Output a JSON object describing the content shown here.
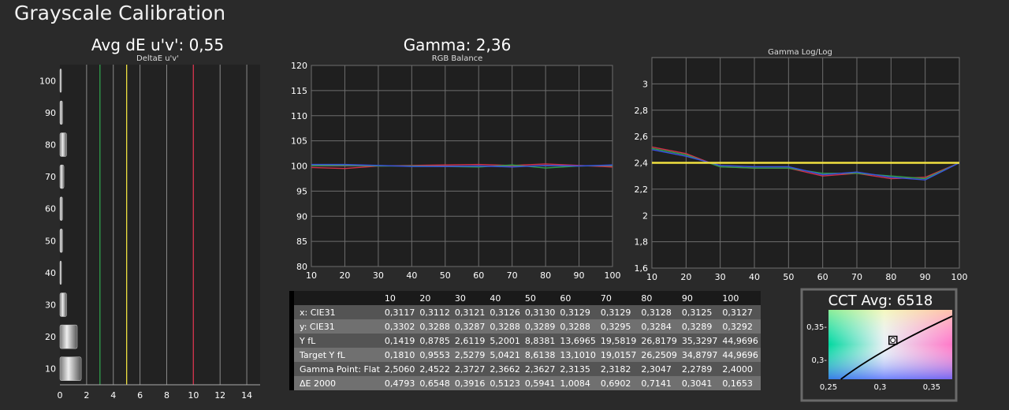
{
  "page_title": "Grayscale Calibration",
  "colors": {
    "background": "#2a2a2a",
    "plot": "#1f1f1f",
    "grid": "#8a8a8a",
    "red": "#d0324a",
    "green": "#2fa04c",
    "blue": "#3a50e0",
    "target": "#f0e040"
  },
  "table": {
    "headers": [
      "10",
      "20",
      "30",
      "40",
      "50",
      "60",
      "70",
      "80",
      "90",
      "100"
    ],
    "rows": [
      {
        "label": "x: CIE31",
        "values": [
          "0,3117",
          "0,3112",
          "0,3121",
          "0,3126",
          "0,3130",
          "0,3129",
          "0,3129",
          "0,3128",
          "0,3125",
          "0,3127"
        ]
      },
      {
        "label": "y: CIE31",
        "values": [
          "0,3302",
          "0,3288",
          "0,3287",
          "0,3288",
          "0,3289",
          "0,3288",
          "0,3295",
          "0,3284",
          "0,3289",
          "0,3292"
        ]
      },
      {
        "label": "Y fL",
        "values": [
          "0,1419",
          "0,8785",
          "2,6119",
          "5,2001",
          "8,8381",
          "13,6965",
          "19,5819",
          "26,8179",
          "35,3297",
          "44,9696"
        ]
      },
      {
        "label": "Target Y fL",
        "values": [
          "0,1810",
          "0,9553",
          "2,5279",
          "5,0421",
          "8,6138",
          "13,1010",
          "19,0157",
          "26,2509",
          "34,8797",
          "44,9696"
        ]
      },
      {
        "label": "Gamma Point: Flat",
        "values": [
          "2,5060",
          "2,4522",
          "2,3727",
          "2,3662",
          "2,3627",
          "2,3135",
          "2,3182",
          "2,3047",
          "2,2789",
          "2,4000"
        ]
      },
      {
        "label": "ΔE 2000",
        "values": [
          "0,4793",
          "0,6548",
          "0,3916",
          "0,5123",
          "0,5941",
          "1,0084",
          "0,6902",
          "0,7141",
          "0,3041",
          "0,1653"
        ]
      }
    ]
  },
  "chart_data": [
    {
      "type": "bar",
      "title": "Avg dE u'v': 0,55",
      "subtitle": "DeltaE u'v'",
      "orientation": "horizontal",
      "categories": [
        10,
        20,
        30,
        40,
        50,
        60,
        70,
        80,
        90,
        100
      ],
      "values": [
        1.6,
        1.3,
        0.5,
        0.1,
        0.2,
        0.2,
        0.3,
        0.5,
        0.2,
        0.1
      ],
      "x_ticks": [
        "0",
        "2",
        "4",
        "6",
        "8",
        "10",
        "12",
        "14"
      ],
      "xlim": [
        0,
        15
      ],
      "y_ticks": [
        "10",
        "20",
        "30",
        "40",
        "50",
        "60",
        "70",
        "80",
        "90",
        "100"
      ],
      "ylim": [
        5,
        105
      ],
      "reference_lines": [
        {
          "x": 3,
          "color": "#2fa04c"
        },
        {
          "x": 5,
          "color": "#f0e040"
        },
        {
          "x": 10,
          "color": "#d0324a"
        }
      ]
    },
    {
      "type": "line",
      "title": "Gamma: 2,36",
      "subtitle": "RGB Balance",
      "x": [
        10,
        20,
        30,
        40,
        50,
        60,
        70,
        80,
        90,
        100
      ],
      "series": [
        {
          "color": "#d0324a",
          "values": [
            99.7,
            99.5,
            100.0,
            100.1,
            100.2,
            100.3,
            100.1,
            100.4,
            100.1,
            99.8
          ]
        },
        {
          "color": "#2fa04c",
          "values": [
            100.1,
            100.2,
            100.0,
            100.0,
            99.9,
            99.8,
            100.2,
            99.6,
            100.0,
            100.1
          ]
        },
        {
          "color": "#3a50e0",
          "values": [
            100.3,
            100.3,
            100.1,
            99.9,
            99.9,
            100.0,
            99.8,
            100.1,
            100.0,
            100.2
          ]
        }
      ],
      "x_ticks": [
        "10",
        "20",
        "30",
        "40",
        "50",
        "60",
        "70",
        "80",
        "90",
        "100"
      ],
      "y_ticks": [
        "80",
        "85",
        "90",
        "95",
        "100",
        "105",
        "110",
        "115",
        "120"
      ],
      "xlim": [
        10,
        100
      ],
      "ylim": [
        80,
        120
      ],
      "grid": true
    },
    {
      "type": "line",
      "title": "Gamma Log/Log",
      "x": [
        10,
        20,
        30,
        40,
        50,
        60,
        70,
        80,
        90,
        100
      ],
      "series": [
        {
          "color": "#d0324a",
          "values": [
            2.52,
            2.47,
            2.37,
            2.36,
            2.36,
            2.3,
            2.32,
            2.28,
            2.29,
            2.4
          ]
        },
        {
          "color": "#2fa04c",
          "values": [
            2.51,
            2.46,
            2.37,
            2.36,
            2.36,
            2.32,
            2.32,
            2.3,
            2.28,
            2.4
          ]
        },
        {
          "color": "#3a50e0",
          "values": [
            2.5,
            2.45,
            2.38,
            2.37,
            2.37,
            2.31,
            2.33,
            2.29,
            2.27,
            2.4
          ]
        },
        {
          "color": "#f0e040",
          "values": [
            2.4,
            2.4,
            2.4,
            2.4,
            2.4,
            2.4,
            2.4,
            2.4,
            2.4,
            2.4
          ]
        }
      ],
      "x_ticks": [
        "10",
        "20",
        "30",
        "40",
        "50",
        "60",
        "70",
        "80",
        "90",
        "100"
      ],
      "y_ticks": [
        "1,6",
        "1,8",
        "2",
        "2,2",
        "2,4",
        "2,6",
        "2,8",
        "3"
      ],
      "xlim": [
        10,
        100
      ],
      "ylim": [
        1.6,
        3.2
      ],
      "grid": true
    },
    {
      "type": "scatter",
      "title": "CCT Avg: 6518",
      "points": [
        {
          "x": 0.3125,
          "y": 0.329
        }
      ],
      "x_ticks": [
        "0,25",
        "0,3",
        "0,35"
      ],
      "y_ticks": [
        "0,3-",
        "0,35-"
      ],
      "xlim": [
        0.25,
        0.37
      ],
      "ylim": [
        0.27,
        0.375
      ]
    }
  ]
}
